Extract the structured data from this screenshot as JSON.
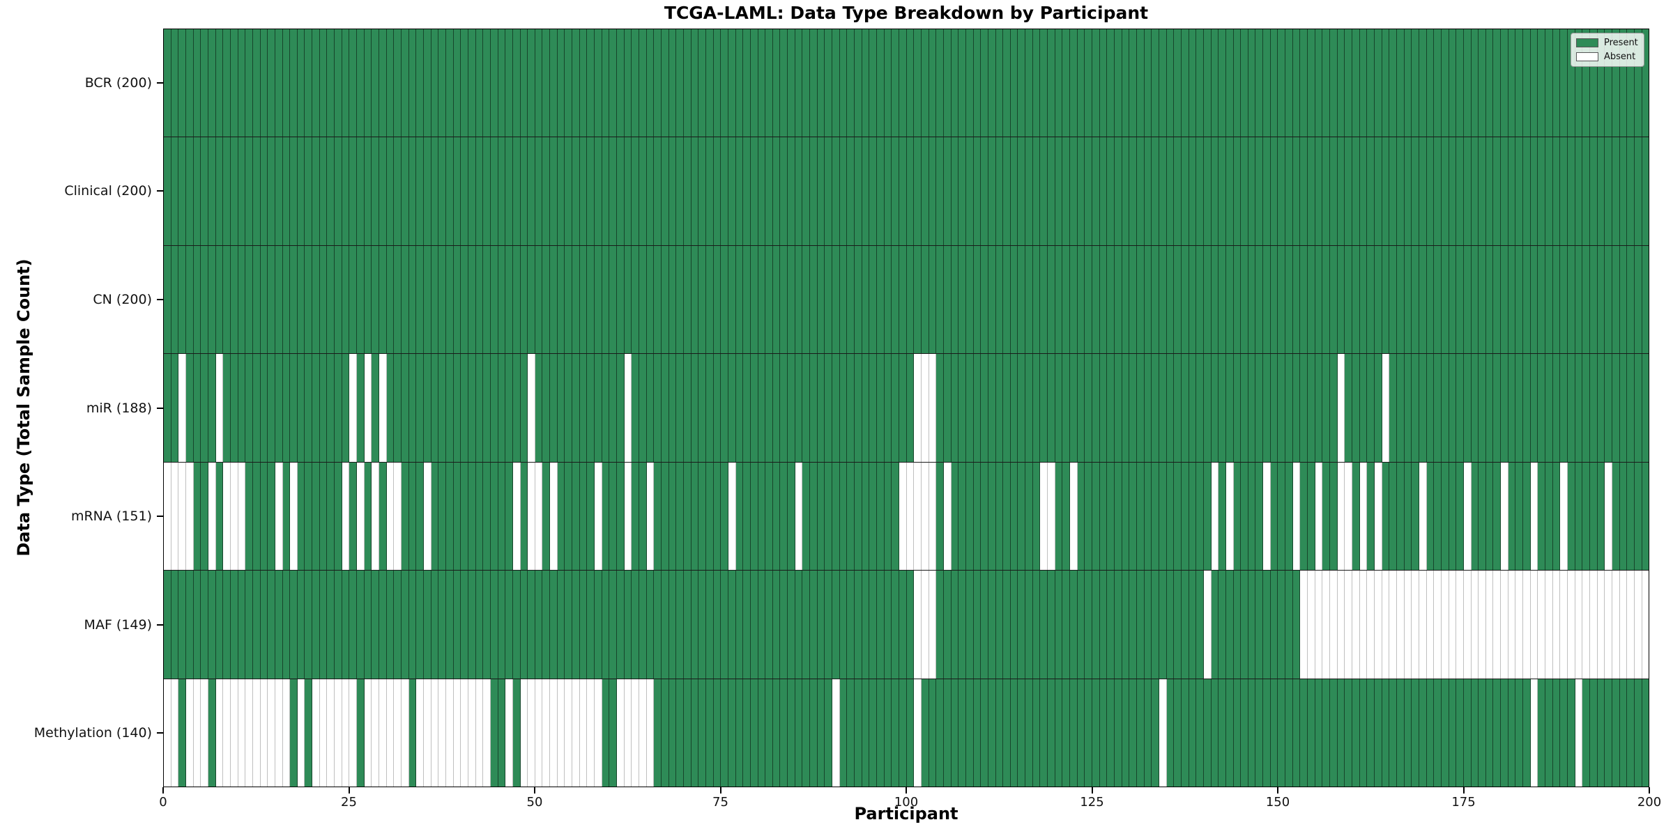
{
  "title": "TCGA-LAML: Data Type Breakdown by Participant",
  "x_axis": {
    "label": "Participant",
    "ticks": [
      0,
      25,
      50,
      75,
      100,
      125,
      150,
      175,
      200
    ]
  },
  "y_axis": {
    "label": "Data Type (Total Sample Count)"
  },
  "legend": {
    "present_label": "Present",
    "absent_label": "Absent"
  },
  "colors": {
    "present": "#2e8b57",
    "absent": "#ffffff"
  },
  "chart_data": {
    "type": "heatmap",
    "title": "TCGA-LAML: Data Type Breakdown by Participant",
    "xlabel": "Participant",
    "ylabel": "Data Type (Total Sample Count)",
    "x_range": [
      0,
      200
    ],
    "n_participants": 200,
    "legend_position": "upper right",
    "rows": [
      {
        "name": "BCR",
        "label": "BCR (200)",
        "total_present": 200,
        "absent_participants": []
      },
      {
        "name": "Clinical",
        "label": "Clinical (200)",
        "total_present": 200,
        "absent_participants": []
      },
      {
        "name": "CN",
        "label": "CN (200)",
        "total_present": 200,
        "absent_participants": []
      },
      {
        "name": "miR",
        "label": "miR (188)",
        "total_present": 188,
        "absent_participants": [
          2,
          7,
          25,
          27,
          29,
          49,
          62,
          101,
          102,
          103,
          158,
          164
        ]
      },
      {
        "name": "mRNA",
        "label": "mRNA (151)",
        "total_present": 151,
        "absent_participants": [
          0,
          1,
          2,
          3,
          6,
          8,
          9,
          10,
          15,
          17,
          24,
          26,
          28,
          30,
          31,
          35,
          47,
          49,
          50,
          52,
          58,
          62,
          65,
          76,
          85,
          99,
          100,
          101,
          102,
          103,
          105,
          118,
          119,
          122,
          141,
          143,
          148,
          152,
          155,
          158,
          159,
          161,
          163,
          169,
          175,
          180,
          184,
          188,
          194
        ]
      },
      {
        "name": "MAF",
        "label": "MAF (149)",
        "total_present": 149,
        "absent_participants": [
          101,
          102,
          103,
          140,
          153,
          154,
          155,
          156,
          157,
          158,
          159,
          160,
          161,
          162,
          163,
          164,
          165,
          166,
          167,
          168,
          169,
          170,
          171,
          172,
          173,
          174,
          175,
          176,
          177,
          178,
          179,
          180,
          181,
          182,
          183,
          184,
          185,
          186,
          187,
          188,
          189,
          190,
          191,
          192,
          193,
          194,
          195,
          196,
          197,
          198,
          199
        ]
      },
      {
        "name": "Methylation",
        "label": "Methylation (140)",
        "total_present": 140,
        "absent_participants": [
          0,
          1,
          3,
          4,
          5,
          7,
          8,
          9,
          10,
          11,
          12,
          13,
          14,
          15,
          16,
          18,
          20,
          21,
          22,
          23,
          24,
          25,
          27,
          28,
          29,
          30,
          31,
          32,
          34,
          35,
          36,
          37,
          38,
          39,
          40,
          41,
          42,
          43,
          46,
          48,
          49,
          50,
          51,
          52,
          53,
          54,
          55,
          56,
          57,
          58,
          61,
          62,
          63,
          64,
          65,
          90,
          101,
          134,
          184,
          190
        ]
      }
    ]
  }
}
